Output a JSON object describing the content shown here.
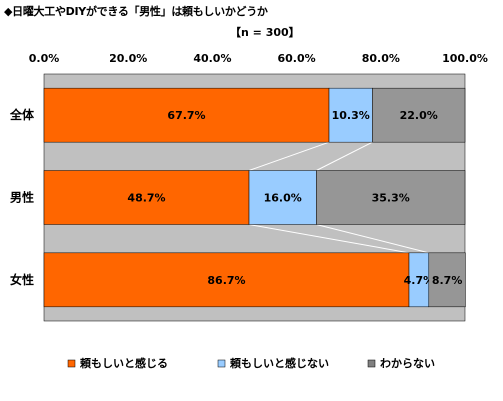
{
  "title": "◆日曜大工やDIYができる「男性」は頼もしいかどうか",
  "sample_note": "【n = 300】",
  "colors": {
    "orange": "#ff6600",
    "light_blue": "#99ccff",
    "gray": "#969696",
    "plot_background": "#c0c0c0",
    "legend_orange": "#ff6600",
    "legend_blue": "#99ccff",
    "legend_gray": "#808080"
  },
  "chart_data": {
    "type": "bar",
    "orientation": "horizontal",
    "stacked": true,
    "categories": [
      "全体",
      "男性",
      "女性"
    ],
    "series": [
      {
        "name": "頼もしいと感じる",
        "values": [
          67.7,
          48.7,
          86.7
        ],
        "labels": [
          "67.7%",
          "48.7%",
          "86.7%"
        ],
        "color": "#ff6600"
      },
      {
        "name": "頼もしいと感じない",
        "values": [
          10.3,
          16.0,
          4.7
        ],
        "labels": [
          "10.3%",
          "16.0%",
          "4.7%"
        ],
        "color": "#99ccff"
      },
      {
        "name": "わからない",
        "values": [
          22.0,
          35.3,
          8.7
        ],
        "labels": [
          "22.0%",
          "35.3%",
          "8.7%"
        ],
        "color": "#969696"
      }
    ],
    "xlim": [
      0,
      100
    ],
    "x_ticks": [
      "0.0%",
      "20.0%",
      "40.0%",
      "60.0%",
      "80.0%",
      "100.0%"
    ],
    "x_tick_values": [
      0,
      20,
      40,
      60,
      80,
      100
    ],
    "axis_position": "top",
    "series_lines": true,
    "grid": false,
    "legend_position": "bottom"
  }
}
